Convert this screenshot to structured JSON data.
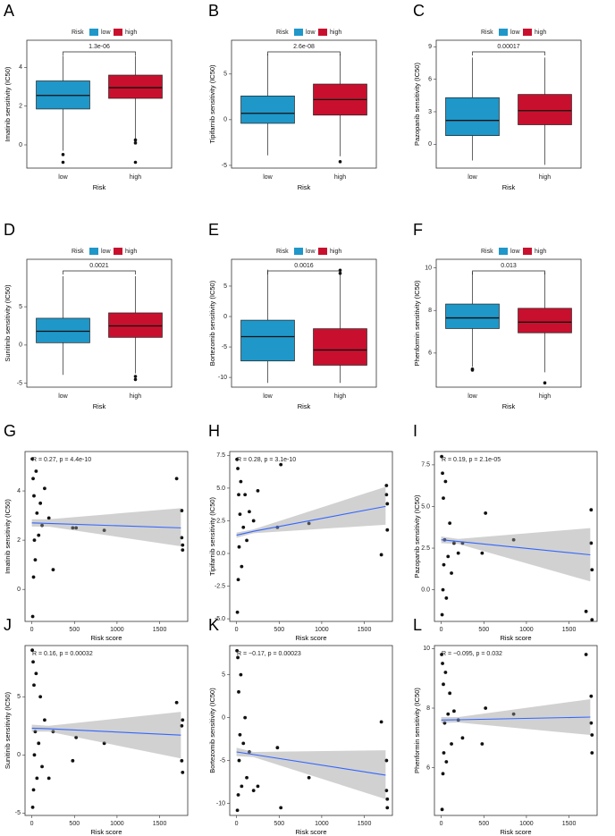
{
  "chart_data": [
    {
      "type": "box",
      "panel": "A",
      "legend_title": "Risk",
      "categories": [
        "low",
        "high"
      ],
      "x_label": "Risk",
      "y_label": "Imatinib sensitivity (IC50)",
      "p_value": "1.3e-06",
      "ylim": [
        -1.2,
        5.4
      ],
      "yticks": [
        0,
        2,
        4
      ],
      "series": [
        {
          "name": "low",
          "color": "#1f97c9",
          "min": -0.3,
          "q1": 1.85,
          "median": 2.55,
          "q3": 3.3,
          "max": 4.6,
          "outliers": [
            -0.5,
            -0.9
          ]
        },
        {
          "name": "high",
          "color": "#c8102e",
          "min": 0.3,
          "q1": 2.4,
          "median": 2.95,
          "q3": 3.6,
          "max": 4.6,
          "outliers": [
            0.25,
            0.1,
            -0.9
          ]
        }
      ]
    },
    {
      "type": "box",
      "panel": "B",
      "legend_title": "Risk",
      "categories": [
        "low",
        "high"
      ],
      "x_label": "Risk",
      "y_label": "Tipifarnib sensitivity (IC50)",
      "p_value": "2.6e-08",
      "ylim": [
        -5.3,
        8.7
      ],
      "yticks": [
        -5,
        0,
        5
      ],
      "series": [
        {
          "name": "low",
          "color": "#1f97c9",
          "min": -3.9,
          "q1": -0.4,
          "median": 0.7,
          "q3": 2.6,
          "max": 7.2,
          "outliers": []
        },
        {
          "name": "high",
          "color": "#c8102e",
          "min": -4,
          "q1": 0.5,
          "median": 2.2,
          "q3": 3.9,
          "max": 7.2,
          "outliers": [
            -4.6
          ]
        }
      ]
    },
    {
      "type": "box",
      "panel": "C",
      "legend_title": "Risk",
      "categories": [
        "low",
        "high"
      ],
      "x_label": "Risk",
      "y_label": "Pazopanib sensitivity (IC50)",
      "p_value": "0.00017",
      "ylim": [
        -2.2,
        9.6
      ],
      "yticks": [
        0,
        3,
        6,
        9
      ],
      "series": [
        {
          "name": "low",
          "color": "#1f97c9",
          "min": -1.5,
          "q1": 0.8,
          "median": 2.2,
          "q3": 4.3,
          "max": 8,
          "outliers": []
        },
        {
          "name": "high",
          "color": "#c8102e",
          "min": -1.9,
          "q1": 1.8,
          "median": 3.1,
          "q3": 4.6,
          "max": 8,
          "outliers": []
        }
      ]
    },
    {
      "type": "box",
      "panel": "D",
      "legend_title": "Risk",
      "categories": [
        "low",
        "high"
      ],
      "x_label": "Risk",
      "y_label": "Sunitinib sensitivity (IC50)",
      "p_value": "0.0021",
      "ylim": [
        -5.5,
        11.2
      ],
      "yticks": [
        -5,
        0,
        5
      ],
      "series": [
        {
          "name": "low",
          "color": "#1f97c9",
          "min": -3.9,
          "q1": 0.3,
          "median": 1.8,
          "q3": 3.5,
          "max": 9,
          "outliers": []
        },
        {
          "name": "high",
          "color": "#c8102e",
          "min": -3.7,
          "q1": 1,
          "median": 2.5,
          "q3": 4.2,
          "max": 9,
          "outliers": [
            -4.1,
            -4.5
          ]
        }
      ]
    },
    {
      "type": "box",
      "panel": "E",
      "legend_title": "Risk",
      "categories": [
        "low",
        "high"
      ],
      "x_label": "Risk",
      "y_label": "Bortezomib sensitivity (IC50)",
      "p_value": "0.0016",
      "ylim": [
        -11.6,
        9.4
      ],
      "yticks": [
        -10,
        -5,
        0,
        5
      ],
      "series": [
        {
          "name": "low",
          "color": "#1f97c9",
          "min": -10.9,
          "q1": -7.3,
          "median": -3.3,
          "q3": -0.6,
          "max": 7.7,
          "outliers": []
        },
        {
          "name": "high",
          "color": "#c8102e",
          "min": -10.9,
          "q1": -8,
          "median": -5.5,
          "q3": -2,
          "max": 7,
          "outliers": [
            7.6,
            7.1
          ]
        }
      ]
    },
    {
      "type": "box",
      "panel": "F",
      "legend_title": "Risk",
      "categories": [
        "low",
        "high"
      ],
      "x_label": "Risk",
      "y_label": "Phenformin sensitivity (IC50)",
      "p_value": "0.013",
      "ylim": [
        4.4,
        10.4
      ],
      "yticks": [
        6,
        8,
        10
      ],
      "series": [
        {
          "name": "low",
          "color": "#1f97c9",
          "min": 5.35,
          "q1": 7.15,
          "median": 7.65,
          "q3": 8.3,
          "max": 9.8,
          "outliers": [
            5.25,
            5.2
          ]
        },
        {
          "name": "high",
          "color": "#c8102e",
          "min": 5.1,
          "q1": 6.95,
          "median": 7.45,
          "q3": 8.1,
          "max": 9.8,
          "outliers": [
            4.6
          ]
        }
      ]
    },
    {
      "type": "scatter",
      "panel": "G",
      "x_label": "Risk score",
      "y_label": "Imatinib sensitivity (IC50)",
      "annotation": "R = 0.27, p = 4.4e-10",
      "xlim": [
        -80,
        1830
      ],
      "xticks": [
        0,
        500,
        1000,
        1500
      ],
      "ylim": [
        -1.3,
        5.6
      ],
      "yticks": [
        0,
        2,
        4
      ],
      "x": [
        5,
        10,
        15,
        20,
        25,
        30,
        40,
        50,
        60,
        80,
        100,
        120,
        150,
        200,
        250,
        480,
        520,
        850,
        1700,
        1760,
        1760,
        1770,
        1770
      ],
      "values": [
        5.3,
        -1.1,
        4.5,
        0.5,
        3.8,
        2.0,
        1.2,
        4.8,
        3.1,
        2.2,
        3.5,
        2.6,
        4.1,
        2.9,
        0.8,
        2.5,
        2.5,
        2.4,
        4.5,
        3.2,
        2.1,
        1.8,
        1.6
      ],
      "fit": {
        "x": [
          0,
          200,
          1750
        ],
        "y": [
          2.7,
          2.68,
          2.5
        ],
        "lower": [
          2.55,
          2.55,
          1.75
        ],
        "upper": [
          2.85,
          2.85,
          3.3
        ]
      }
    },
    {
      "type": "scatter",
      "panel": "H",
      "x_label": "Risk score",
      "y_label": "Tipifarnib sensitivity (IC50)",
      "annotation": "R = 0.28, p = 3.1e-10",
      "xlim": [
        -80,
        1830
      ],
      "xticks": [
        0,
        500,
        1000,
        1500
      ],
      "ylim": [
        -5.2,
        7.8
      ],
      "yticks": [
        {
          "value": -5,
          "label": "-5.0"
        },
        {
          "value": -2.5,
          "label": "-2.5"
        },
        {
          "value": 0,
          "label": "0.0"
        },
        {
          "value": 2.5,
          "label": "2.5"
        },
        {
          "value": 5,
          "label": "5.0"
        },
        {
          "value": 7.5,
          "label": "7.5"
        }
      ],
      "x": [
        5,
        10,
        15,
        20,
        25,
        30,
        40,
        50,
        60,
        80,
        100,
        120,
        150,
        200,
        250,
        480,
        520,
        850,
        1700,
        1760,
        1760,
        1770,
        1770
      ],
      "values": [
        7.2,
        -4.5,
        6.5,
        -2,
        4.5,
        0.5,
        3,
        5.5,
        -1,
        2,
        4.5,
        1,
        3.2,
        2.5,
        4.8,
        2,
        6.8,
        2.3,
        -0.1,
        5.2,
        4.5,
        3.8,
        1.8
      ],
      "fit": {
        "x": [
          0,
          200,
          1750
        ],
        "y": [
          1.4,
          1.7,
          3.6
        ],
        "lower": [
          1.2,
          1.55,
          2.2
        ],
        "upper": [
          1.6,
          1.85,
          5.1
        ]
      }
    },
    {
      "type": "scatter",
      "panel": "I",
      "x_label": "Risk score",
      "y_label": "Pazopanib sensitivity (IC50)",
      "annotation": "R = 0.19, p = 2.1e-05",
      "xlim": [
        -80,
        1830
      ],
      "xticks": [
        0,
        500,
        1000,
        1500
      ],
      "ylim": [
        -1.9,
        8.3
      ],
      "yticks": [
        {
          "value": 0,
          "label": "0.0"
        },
        {
          "value": 2.5,
          "label": "2.5"
        },
        {
          "value": 5,
          "label": "5.0"
        },
        {
          "value": 7.5,
          "label": "7.5"
        }
      ],
      "x": [
        5,
        10,
        15,
        20,
        25,
        30,
        40,
        50,
        60,
        80,
        100,
        120,
        150,
        200,
        250,
        480,
        520,
        850,
        1700,
        1760,
        1760,
        1770,
        1770
      ],
      "values": [
        8.0,
        -1.5,
        7,
        0,
        5.5,
        1.5,
        3,
        6.5,
        -0.5,
        2,
        4,
        1,
        2.8,
        2.2,
        2.8,
        2.2,
        4.6,
        3,
        -1.3,
        4.8,
        2.8,
        1.2,
        -1.8
      ],
      "fit": {
        "x": [
          0,
          200,
          1750
        ],
        "y": [
          3.0,
          2.9,
          2.1
        ],
        "lower": [
          2.8,
          2.75,
          0.5
        ],
        "upper": [
          3.2,
          3.05,
          3.7
        ]
      }
    },
    {
      "type": "scatter",
      "panel": "J",
      "x_label": "Risk score",
      "y_label": "Sunitinib sensitivity (IC50)",
      "annotation": "R = 0.16, p = 0.00032",
      "xlim": [
        -80,
        1830
      ],
      "xticks": [
        0,
        500,
        1000,
        1500
      ],
      "ylim": [
        -5.2,
        9.4
      ],
      "yticks": [
        -5,
        0,
        5
      ],
      "x": [
        5,
        10,
        15,
        20,
        25,
        30,
        40,
        50,
        60,
        80,
        100,
        120,
        150,
        200,
        250,
        480,
        520,
        850,
        1700,
        1760,
        1760,
        1770,
        1770
      ],
      "values": [
        9,
        -4.5,
        8,
        -3,
        6,
        0,
        2,
        7,
        -2,
        1,
        5,
        -1,
        3,
        -2,
        2,
        -0.5,
        1.5,
        1,
        4.5,
        2.5,
        -0.5,
        -1.5,
        3
      ],
      "fit": {
        "x": [
          0,
          200,
          1750
        ],
        "y": [
          2.3,
          2.25,
          1.7
        ],
        "lower": [
          2.0,
          2.0,
          -0.3
        ],
        "upper": [
          2.6,
          2.5,
          3.7
        ]
      }
    },
    {
      "type": "scatter",
      "panel": "K",
      "x_label": "Risk score",
      "y_label": "Bortezomib sensitivity (IC50)",
      "annotation": "R = −0.17, p = 0.00023",
      "xlim": [
        -80,
        1830
      ],
      "xticks": [
        0,
        500,
        1000,
        1500
      ],
      "ylim": [
        -11.4,
        8.4
      ],
      "yticks": [
        -10,
        -5,
        0,
        5
      ],
      "x": [
        5,
        10,
        15,
        20,
        25,
        30,
        40,
        50,
        60,
        80,
        100,
        120,
        150,
        200,
        250,
        480,
        520,
        850,
        1700,
        1760,
        1760,
        1770,
        1770
      ],
      "values": [
        7.8,
        -10.8,
        7,
        -9,
        3,
        -5,
        -2,
        5,
        -8,
        -3,
        0,
        -7,
        -4,
        -8.5,
        -8,
        -3.5,
        -10.5,
        -7,
        -0.5,
        -5,
        -8.5,
        -9.5,
        -10.5
      ],
      "fit": {
        "x": [
          0,
          200,
          1750
        ],
        "y": [
          -4.0,
          -4.3,
          -6.7
        ],
        "lower": [
          -4.5,
          -4.6,
          -9.5
        ],
        "upper": [
          -3.5,
          -4.0,
          -3.8
        ]
      }
    },
    {
      "type": "scatter",
      "panel": "L",
      "x_label": "Risk score",
      "y_label": "Phenformin sensitivity (IC50)",
      "annotation": "R = −0.095, p = 0.032",
      "xlim": [
        -80,
        1830
      ],
      "xticks": [
        0,
        500,
        1000,
        1500
      ],
      "ylim": [
        4.4,
        10.1
      ],
      "yticks": [
        6,
        8,
        10
      ],
      "x": [
        5,
        10,
        15,
        20,
        25,
        30,
        40,
        50,
        60,
        80,
        100,
        120,
        150,
        200,
        250,
        480,
        520,
        850,
        1700,
        1760,
        1760,
        1770,
        1770
      ],
      "values": [
        9.8,
        4.6,
        9.5,
        5.8,
        8.8,
        6.5,
        7.5,
        9.2,
        6.2,
        7.8,
        8.5,
        6.8,
        7.9,
        7.6,
        7.0,
        6.8,
        8.0,
        7.8,
        9.8,
        8.4,
        7.5,
        7.1,
        6.5
      ],
      "fit": {
        "x": [
          0,
          200,
          1750
        ],
        "y": [
          7.6,
          7.61,
          7.7
        ],
        "lower": [
          7.5,
          7.52,
          7.1
        ],
        "upper": [
          7.7,
          7.7,
          8.3
        ]
      }
    }
  ]
}
